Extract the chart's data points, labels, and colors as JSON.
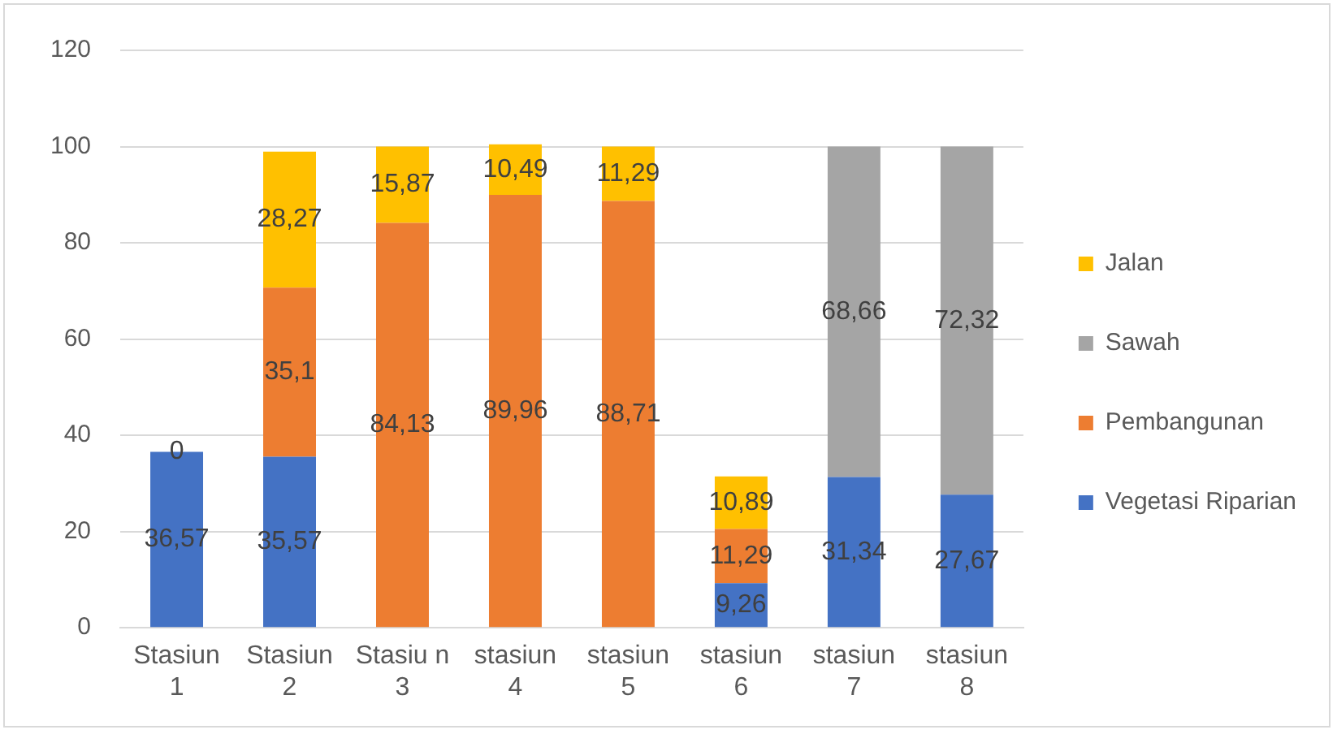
{
  "chart_data": {
    "type": "bar",
    "stacked": true,
    "categories": [
      "Stasiun\n1",
      "Stasiun\n2",
      "Stasiu n\n3",
      "stasiun\n4",
      "stasiun\n5",
      "stasiun\n6",
      "stasiun\n7",
      "stasiun\n8"
    ],
    "series": [
      {
        "name": "Vegetasi Riparian",
        "color": "#4472c4",
        "values": [
          36.57,
          35.57,
          null,
          null,
          null,
          9.26,
          31.34,
          27.67
        ],
        "value_labels": [
          "36,57",
          "35,57",
          null,
          null,
          null,
          "9,26",
          "31,34",
          "27,67"
        ]
      },
      {
        "name": "Pembangunan",
        "color": "#ed7d31",
        "values": [
          0,
          35.1,
          84.13,
          89.96,
          88.71,
          11.29,
          null,
          null
        ],
        "value_labels": [
          "0",
          "35,1",
          "84,13",
          "89,96",
          "88,71",
          "11,29",
          null,
          null
        ]
      },
      {
        "name": "Sawah",
        "color": "#a5a5a5",
        "values": [
          null,
          null,
          null,
          null,
          null,
          null,
          68.66,
          72.32
        ],
        "value_labels": [
          null,
          null,
          null,
          null,
          null,
          null,
          "68,66",
          "72,32"
        ]
      },
      {
        "name": "Jalan",
        "color": "#ffc000",
        "values": [
          null,
          28.27,
          15.87,
          10.49,
          11.29,
          10.89,
          null,
          null
        ],
        "value_labels": [
          null,
          "28,27",
          "15,87",
          "10,49",
          "11,29",
          "10,89",
          null,
          null
        ]
      }
    ],
    "ylim": [
      0,
      120
    ],
    "yticks": [
      0,
      20,
      40,
      60,
      80,
      100,
      120
    ],
    "grid": "y",
    "legend": "right"
  }
}
